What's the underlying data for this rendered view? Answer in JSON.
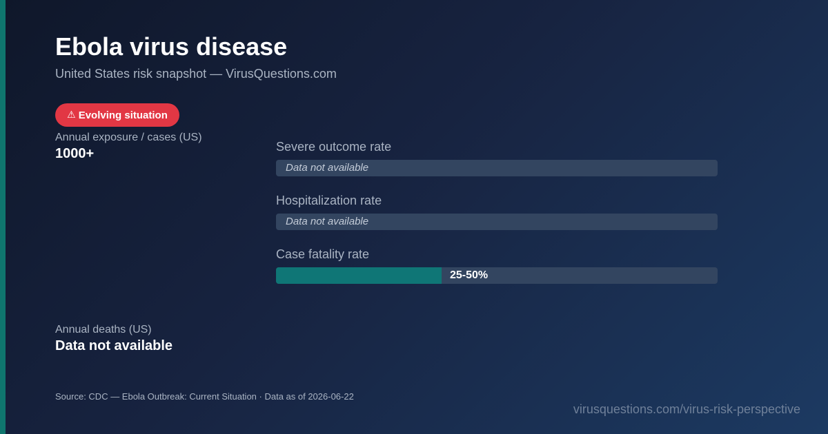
{
  "header": {
    "title": "Ebola virus disease",
    "subtitle": "United States risk snapshot — VirusQuestions.com"
  },
  "badge": {
    "icon": "warning-icon",
    "glyph": "⚠",
    "label": "Evolving situation",
    "color": "#e23744"
  },
  "stats": {
    "exposure": {
      "label": "Annual exposure / cases (US)",
      "value": "1000+"
    },
    "deaths": {
      "label": "Annual deaths (US)",
      "value": "Data not available"
    }
  },
  "metrics": {
    "severe": {
      "label": "Severe outcome rate",
      "value": "Data not available"
    },
    "hospitalization": {
      "label": "Hospitalization rate",
      "value": "Data not available"
    },
    "case_fatality": {
      "label": "Case fatality rate",
      "value": "25-50%",
      "fill_fraction": 0.375
    }
  },
  "footer": {
    "source": "Source: CDC — Ebola Outbreak: Current Situation · Data as of 2026-06-22",
    "url": "virusquestions.com/virus-risk-perspective"
  },
  "colors": {
    "accent": "#0f766e",
    "badge": "#e23744",
    "bar_track": "#334560",
    "bar_fill": "#0f7676"
  }
}
